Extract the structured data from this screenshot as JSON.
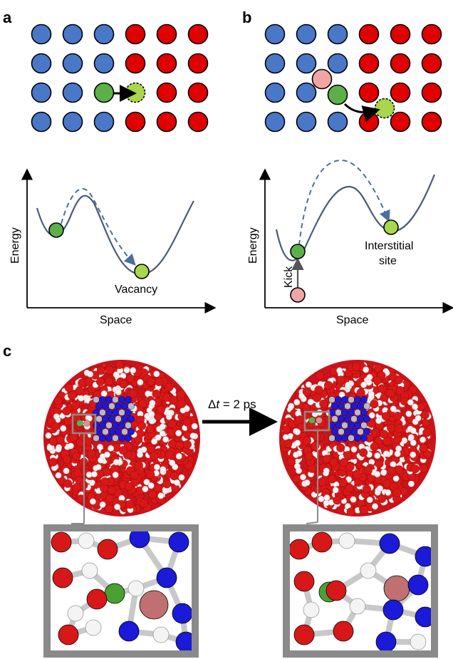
{
  "panels": {
    "a": {
      "letter": "a",
      "axis_y": "Energy",
      "axis_x": "Space",
      "site_label": "Vacancy"
    },
    "b": {
      "letter": "b",
      "axis_y": "Energy",
      "axis_x": "Space",
      "site_label_line1": "Interstitial",
      "site_label_line2": "site",
      "kick_label": "Kick"
    },
    "c": {
      "letter": "c",
      "delta_symbol": "Δ",
      "time_var": "t",
      "time_value": " = 2 ps"
    }
  },
  "colors": {
    "blue_atom": "#4a78c8",
    "red_atom": "#e00000",
    "green_atom": "#6cc04a",
    "light_green_atom": "#9ad44f",
    "pink_atom": "#f0a0a0",
    "curve": "#4a5a78",
    "dashed_arrow": "#4a6fa0",
    "oxygen": "#d81818",
    "hydrogen": "#f4f4f4",
    "nitrogen": "#1a1ad8",
    "inset_frame": "#8a8a8a"
  }
}
